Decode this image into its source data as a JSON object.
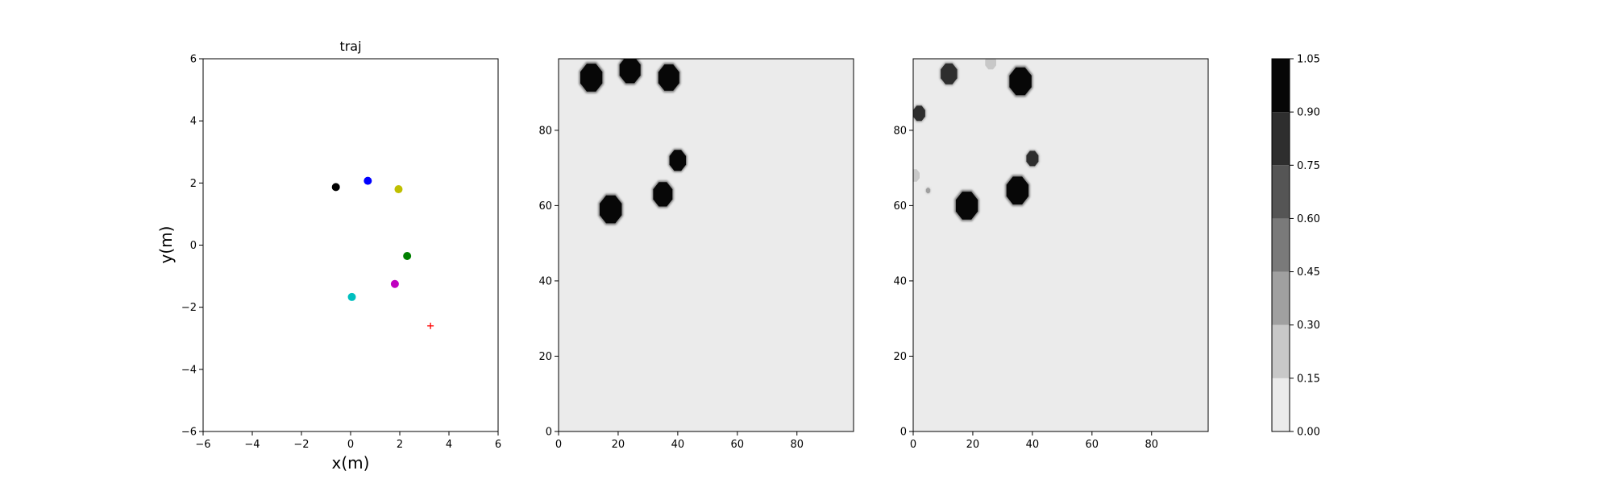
{
  "chart_data": [
    {
      "type": "scatter",
      "title": "traj",
      "xlabel": "x(m)",
      "ylabel": "y(m)",
      "xlim": [
        -6,
        6
      ],
      "ylim": [
        -6,
        6
      ],
      "xticks": [
        -6,
        -4,
        -2,
        0,
        2,
        4,
        6
      ],
      "yticks": [
        -6,
        -4,
        -2,
        0,
        2,
        4,
        6
      ],
      "tick_labels_x": [
        "−6",
        "−4",
        "−2",
        "0",
        "2",
        "4",
        "6"
      ],
      "tick_labels_y": [
        "−6",
        "−4",
        "−2",
        "0",
        "2",
        "4",
        "6"
      ],
      "grid": false,
      "points": [
        {
          "x": -0.6,
          "y": 1.87,
          "color": "#000000",
          "marker": "circle"
        },
        {
          "x": 0.7,
          "y": 2.07,
          "color": "#0000ff",
          "marker": "circle"
        },
        {
          "x": 1.95,
          "y": 1.8,
          "color": "#bfbf00",
          "marker": "circle"
        },
        {
          "x": 2.3,
          "y": -0.35,
          "color": "#008000",
          "marker": "circle"
        },
        {
          "x": 1.8,
          "y": -1.25,
          "color": "#bf00bf",
          "marker": "circle"
        },
        {
          "x": 0.05,
          "y": -1.67,
          "color": "#00bfbf",
          "marker": "circle"
        },
        {
          "x": 3.25,
          "y": -2.6,
          "color": "#ff0000",
          "marker": "plus"
        }
      ]
    },
    {
      "type": "heatmap",
      "xlim": [
        0,
        99
      ],
      "ylim": [
        0,
        99
      ],
      "xticks": [
        0,
        20,
        40,
        60,
        80
      ],
      "yticks": [
        0,
        20,
        40,
        60,
        80
      ],
      "tick_labels_x": [
        "0",
        "20",
        "40",
        "60",
        "80"
      ],
      "tick_labels_y": [
        "0",
        "20",
        "40",
        "60",
        "80"
      ],
      "blobs": [
        {
          "x": 11,
          "y": 94,
          "r": 4,
          "value": 1.0
        },
        {
          "x": 24,
          "y": 96,
          "r": 3.8,
          "value": 1.0
        },
        {
          "x": 37,
          "y": 94,
          "r": 3.8,
          "value": 1.0
        },
        {
          "x": 40,
          "y": 72,
          "r": 3,
          "value": 1.0
        },
        {
          "x": 35,
          "y": 63,
          "r": 3.5,
          "value": 1.0
        },
        {
          "x": 17.5,
          "y": 59,
          "r": 4,
          "value": 1.0
        }
      ]
    },
    {
      "type": "heatmap",
      "xlim": [
        0,
        99
      ],
      "ylim": [
        0,
        99
      ],
      "xticks": [
        0,
        20,
        40,
        60,
        80
      ],
      "yticks": [
        0,
        20,
        40,
        60,
        80
      ],
      "tick_labels_x": [
        "0",
        "20",
        "40",
        "60",
        "80"
      ],
      "tick_labels_y": [
        "0",
        "20",
        "40",
        "60",
        "80"
      ],
      "blobs": [
        {
          "x": 12,
          "y": 95,
          "r": 3,
          "value": 0.85
        },
        {
          "x": 2,
          "y": 84.5,
          "r": 2.2,
          "value": 0.85
        },
        {
          "x": 36,
          "y": 93,
          "r": 4,
          "value": 1.0
        },
        {
          "x": 40,
          "y": 72.5,
          "r": 2.2,
          "value": 0.75
        },
        {
          "x": 35,
          "y": 64,
          "r": 4,
          "value": 1.0
        },
        {
          "x": 18,
          "y": 60,
          "r": 4,
          "value": 1.0
        },
        {
          "x": 26,
          "y": 98,
          "r": 2,
          "value": 0.25
        },
        {
          "x": 0.5,
          "y": 68,
          "r": 1.8,
          "value": 0.25
        },
        {
          "x": 5,
          "y": 64,
          "r": 0.8,
          "value": 0.3
        }
      ]
    },
    {
      "type": "colorbar",
      "levels": [
        0.0,
        0.15,
        0.3,
        0.45,
        0.6,
        0.75,
        0.9,
        1.05
      ],
      "tick_labels": [
        "0.00",
        "0.15",
        "0.30",
        "0.45",
        "0.60",
        "0.75",
        "0.90",
        "1.05"
      ],
      "colors": [
        "#ebebeb",
        "#c8c8c8",
        "#a0a0a0",
        "#7a7a7a",
        "#555555",
        "#2e2e2e",
        "#070707"
      ]
    }
  ]
}
